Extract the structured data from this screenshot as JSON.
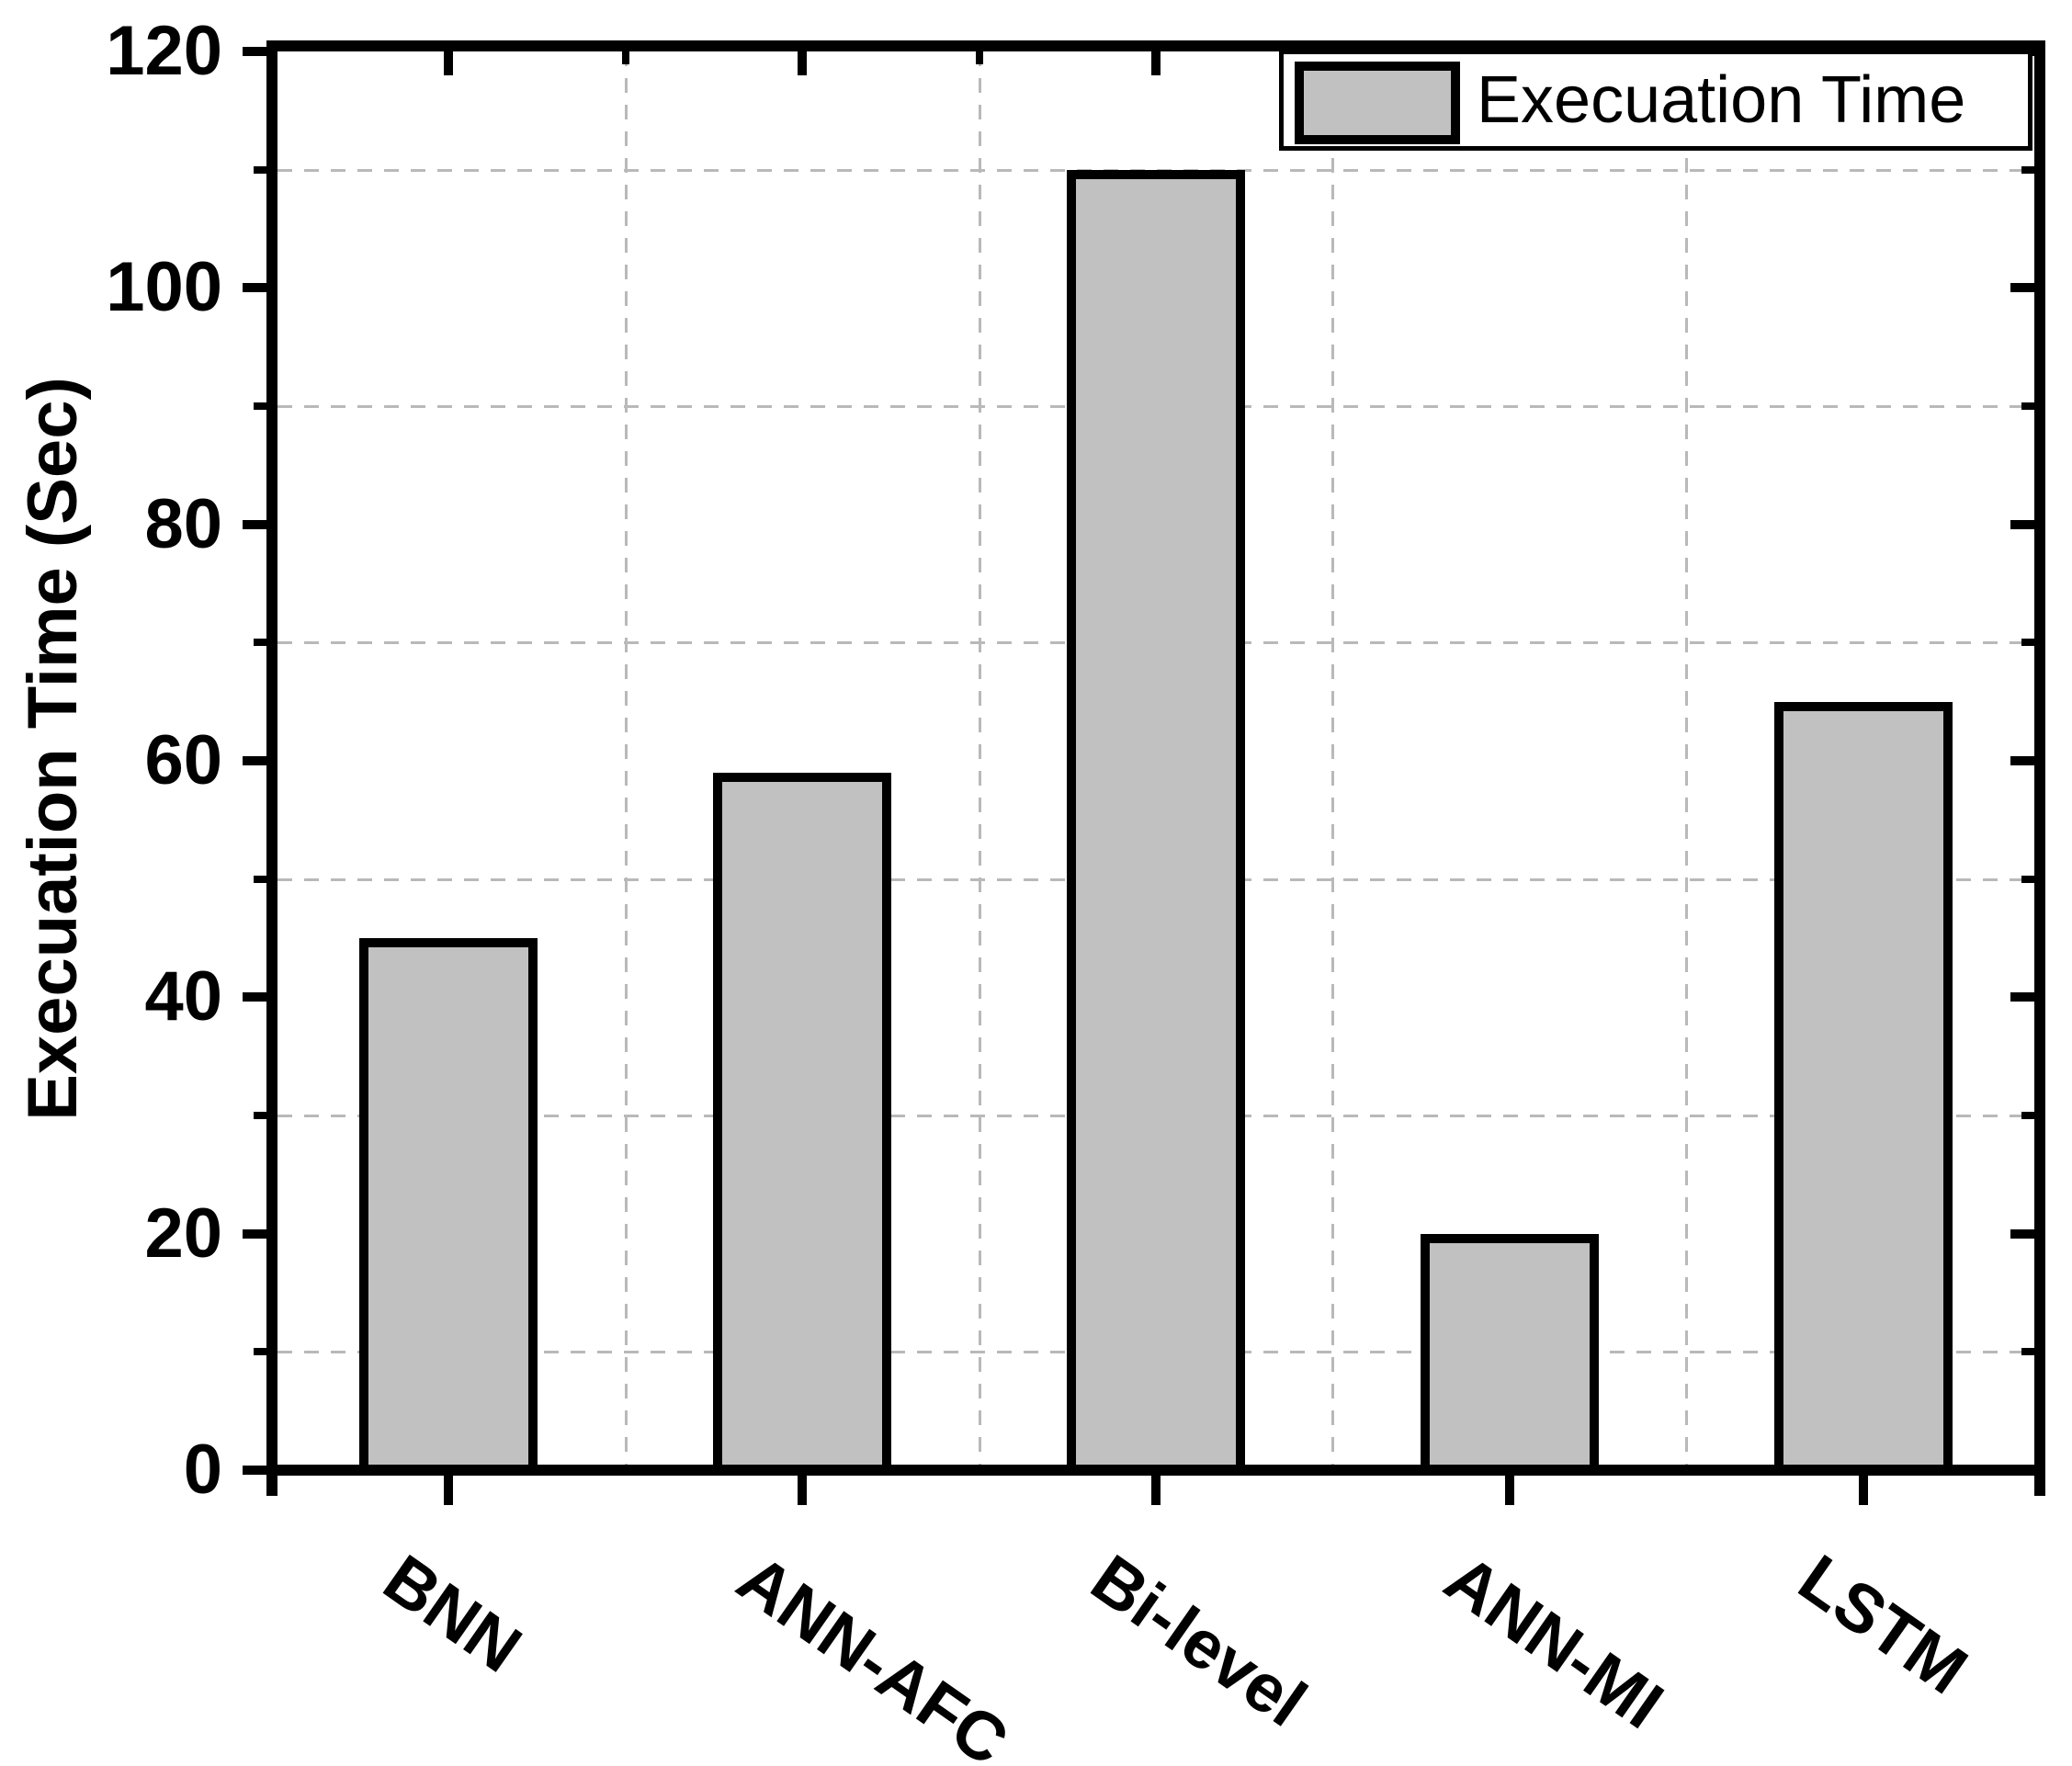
{
  "chart_data": {
    "type": "bar",
    "title": "",
    "categories": [
      "BNN",
      "ANN-AFC",
      "Bi-level",
      "ANN-MI",
      "LSTM"
    ],
    "values": [
      45,
      59,
      110,
      20,
      65
    ],
    "series_name": "Execuation Time",
    "xlabel": "",
    "ylabel": "Execuation Time (Sec)",
    "ylim": [
      0,
      120
    ],
    "yticks": [
      0,
      20,
      40,
      60,
      80,
      100,
      120
    ],
    "minor_yticks": [
      10,
      30,
      50,
      70,
      90,
      110
    ],
    "minor_gridlines_y": [
      10,
      30,
      50,
      70,
      90,
      110
    ],
    "grid": "minor-dashed",
    "legend_position": "top-right",
    "bar_color": "#c1c1c1",
    "bar_border_color": "#000000",
    "gridline_color": "#b9b9b9",
    "axis_color": "#000000"
  },
  "y_axis": {
    "title": "Execuation Time (Sec)",
    "tick_labels": [
      "0",
      "20",
      "40",
      "60",
      "80",
      "100",
      "120"
    ]
  },
  "x_axis": {
    "tick_labels": [
      "BNN",
      "ANN-AFC",
      "Bi-level",
      "ANN-MI",
      "LSTM"
    ]
  },
  "legend": {
    "label": "Execuation Time"
  }
}
